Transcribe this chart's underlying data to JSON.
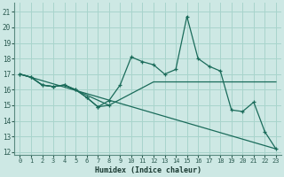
{
  "xlabel": "Humidex (Indice chaleur)",
  "bg_color": "#cde8e4",
  "grid_color": "#a8d4cc",
  "line_color": "#1a6b5a",
  "xlim": [
    -0.5,
    23.5
  ],
  "ylim": [
    11.8,
    21.6
  ],
  "xticks": [
    0,
    1,
    2,
    3,
    4,
    5,
    6,
    7,
    8,
    9,
    10,
    11,
    12,
    13,
    14,
    15,
    16,
    17,
    18,
    19,
    20,
    21,
    22,
    23
  ],
  "yticks": [
    12,
    13,
    14,
    15,
    16,
    17,
    18,
    19,
    20,
    21
  ],
  "line1_x": [
    0,
    1,
    2,
    3,
    4,
    8,
    12,
    16,
    20,
    23
  ],
  "line1_y": [
    17.0,
    16.8,
    16.3,
    16.2,
    16.3,
    15.0,
    16.5,
    16.5,
    16.5,
    16.5
  ],
  "line2_x": [
    0,
    1,
    2,
    3,
    4,
    5,
    6,
    7,
    8,
    9,
    10,
    11,
    12,
    13,
    14,
    15,
    16,
    17,
    18,
    19,
    20,
    21,
    22,
    23
  ],
  "line2_y": [
    17.0,
    16.8,
    16.3,
    16.2,
    16.3,
    16.0,
    15.5,
    14.9,
    15.3,
    16.3,
    18.1,
    17.8,
    17.6,
    17.0,
    17.3,
    20.7,
    18.0,
    17.5,
    17.2,
    14.7,
    14.6,
    15.2,
    13.3,
    12.2
  ],
  "line3_x": [
    0,
    1,
    2,
    3,
    4,
    5,
    6,
    7,
    8
  ],
  "line3_y": [
    17.0,
    16.8,
    16.3,
    16.2,
    16.3,
    16.0,
    15.5,
    14.9,
    15.0
  ],
  "line4_x": [
    0,
    23
  ],
  "line4_y": [
    17.0,
    12.2
  ]
}
